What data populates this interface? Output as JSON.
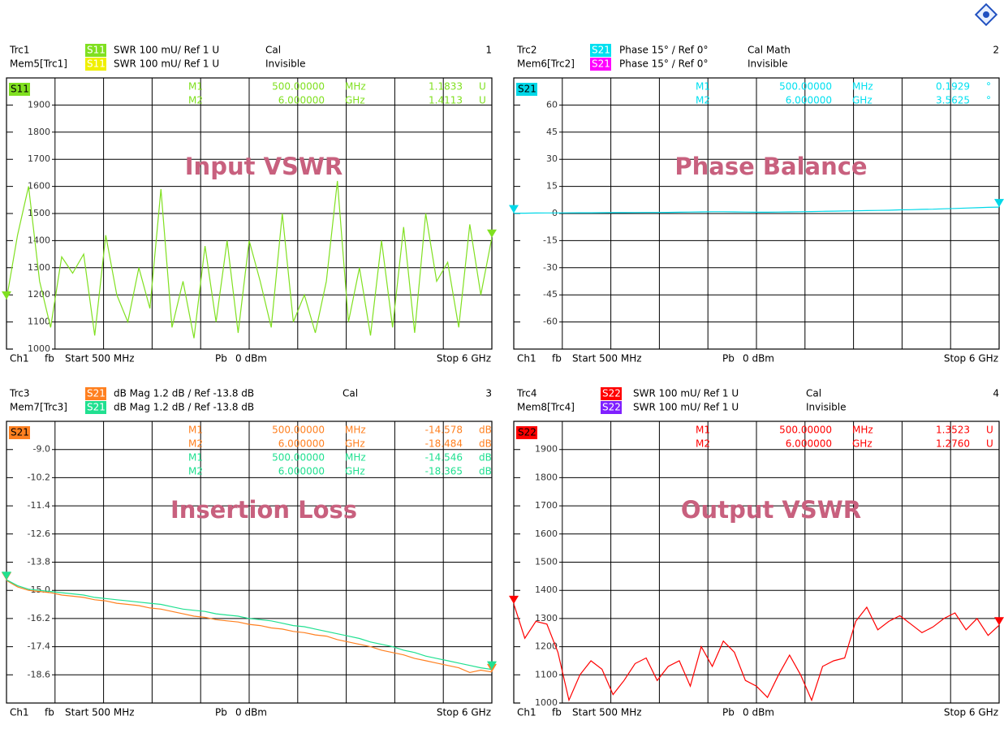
{
  "chart_data": [
    {
      "type": "line",
      "title": "Input VSWR",
      "page": "1",
      "legend": [
        {
          "label": "Trc1",
          "param": "S11",
          "color": "#80e020",
          "format": "SWR 100 mU/ Ref 1 U",
          "status": "Cal"
        },
        {
          "label": "Mem5[Trc1]",
          "param": "S11",
          "color": "#f0f000",
          "format": "SWR 100 mU/ Ref 1 U",
          "status": "Invisible"
        }
      ],
      "markers": [
        {
          "label": "M1",
          "freq": "500.00000",
          "unit": "MHz",
          "value": "1.1833",
          "vunit": "U",
          "color": "#80e020"
        },
        {
          "label": "M2",
          "freq": "6.000000",
          "unit": "GHz",
          "value": "1.4113",
          "vunit": "U",
          "color": "#80e020"
        }
      ],
      "footer": [
        "Ch1",
        "fb",
        "Start 500 MHz",
        "Pb",
        "0 dBm",
        "Stop 6 GHz"
      ],
      "x": [
        500,
        625,
        750,
        875,
        1000,
        1125,
        1250,
        1375,
        1500,
        1625,
        1750,
        1875,
        2000,
        2125,
        2250,
        2375,
        2500,
        2625,
        2750,
        2875,
        3000,
        3125,
        3250,
        3375,
        3500,
        3625,
        3750,
        3875,
        4000,
        4125,
        4250,
        4375,
        4500,
        4625,
        4750,
        4875,
        5000,
        5125,
        5250,
        5375,
        5500,
        5625,
        5750,
        5875,
        6000
      ],
      "xlim": [
        500,
        6000
      ],
      "ylim": [
        1000,
        2000
      ],
      "yticks": [
        1900,
        1800,
        1700,
        1600,
        1500,
        1400,
        1300,
        1200,
        1100,
        1000
      ],
      "series": [
        {
          "name": "S11",
          "color": "#80e020",
          "values": [
            1183,
            1420,
            1600,
            1250,
            1080,
            1340,
            1280,
            1350,
            1050,
            1420,
            1200,
            1100,
            1300,
            1150,
            1590,
            1080,
            1250,
            1040,
            1380,
            1100,
            1400,
            1060,
            1400,
            1250,
            1080,
            1500,
            1100,
            1200,
            1060,
            1250,
            1620,
            1100,
            1300,
            1050,
            1400,
            1080,
            1450,
            1060,
            1500,
            1250,
            1320,
            1080,
            1460,
            1200,
            1411
          ]
        }
      ]
    },
    {
      "type": "line",
      "title": "Phase Balance",
      "page": "2",
      "legend": [
        {
          "label": "Trc2",
          "param": "S21",
          "color": "#00e0f0",
          "format": "Phase 15° / Ref 0°",
          "status": "Cal Math"
        },
        {
          "label": "Mem6[Trc2]",
          "param": "S21",
          "color": "#ff00ff",
          "format": "Phase 15° / Ref 0°",
          "status": "Invisible"
        }
      ],
      "markers": [
        {
          "label": "M1",
          "freq": "500.00000",
          "unit": "MHz",
          "value": "0.1929",
          "vunit": "°",
          "color": "#00e0f0"
        },
        {
          "label": "M2",
          "freq": "6.000000",
          "unit": "GHz",
          "value": "3.5625",
          "vunit": "°",
          "color": "#00e0f0"
        }
      ],
      "footer": [
        "Ch1",
        "fb",
        "Start 500 MHz",
        "Pb",
        "0 dBm",
        "Stop 6 GHz"
      ],
      "x": [
        500,
        625,
        750,
        875,
        1000,
        1125,
        1250,
        1375,
        1500,
        1625,
        1750,
        1875,
        2000,
        2125,
        2250,
        2375,
        2500,
        2625,
        2750,
        2875,
        3000,
        3125,
        3250,
        3375,
        3500,
        3625,
        3750,
        3875,
        4000,
        4125,
        4250,
        4375,
        4500,
        4625,
        4750,
        4875,
        5000,
        5125,
        5250,
        5375,
        5500,
        5625,
        5750,
        5875,
        6000
      ],
      "xlim": [
        500,
        6000
      ],
      "ylim": [
        -75,
        75
      ],
      "yticks": [
        60,
        45,
        30,
        15,
        0,
        -15,
        -30,
        -45,
        -60
      ],
      "series": [
        {
          "name": "S21",
          "color": "#00d8e8",
          "values": [
            0.19,
            0.2,
            0.25,
            0.3,
            0.3,
            0.35,
            0.4,
            0.4,
            0.45,
            0.5,
            0.5,
            0.55,
            0.6,
            0.6,
            0.65,
            0.7,
            0.8,
            0.9,
            1.0,
            1.0,
            0.9,
            0.8,
            0.7,
            0.7,
            0.8,
            0.9,
            1.0,
            1.1,
            1.2,
            1.3,
            1.4,
            1.5,
            1.6,
            1.7,
            1.8,
            2.0,
            2.1,
            2.3,
            2.4,
            2.6,
            2.8,
            3.0,
            3.2,
            3.4,
            3.56
          ]
        }
      ]
    },
    {
      "type": "line",
      "title": "Insertion Loss",
      "page": "3",
      "legend": [
        {
          "label": "Trc3",
          "param": "S21",
          "color": "#ff8020",
          "format": "dB Mag 1.2 dB / Ref -13.8 dB",
          "status": "Cal"
        },
        {
          "label": "Mem7[Trc3]",
          "param": "S21",
          "color": "#20e090",
          "format": "dB Mag 1.2 dB / Ref -13.8 dB"
        }
      ],
      "markers": [
        {
          "label": "M1",
          "freq": "500.00000",
          "unit": "MHz",
          "value": "-14.578",
          "vunit": "dB",
          "color": "#ff8020"
        },
        {
          "label": "M2",
          "freq": "6.000000",
          "unit": "GHz",
          "value": "-18.484",
          "vunit": "dB",
          "color": "#ff8020"
        },
        {
          "label": "M1",
          "freq": "500.00000",
          "unit": "MHz",
          "value": "-14.546",
          "vunit": "dB",
          "color": "#20e090"
        },
        {
          "label": "M2",
          "freq": "6.000000",
          "unit": "GHz",
          "value": "-18.365",
          "vunit": "dB",
          "color": "#20e090"
        }
      ],
      "footer": [
        "Ch1",
        "fb",
        "Start 500 MHz",
        "Pb",
        "0 dBm",
        "Stop 6 GHz"
      ],
      "x": [
        500,
        625,
        750,
        875,
        1000,
        1125,
        1250,
        1375,
        1500,
        1625,
        1750,
        1875,
        2000,
        2125,
        2250,
        2375,
        2500,
        2625,
        2750,
        2875,
        3000,
        3125,
        3250,
        3375,
        3500,
        3625,
        3750,
        3875,
        4000,
        4125,
        4250,
        4375,
        4500,
        4625,
        4750,
        4875,
        5000,
        5125,
        5250,
        5375,
        5500,
        5625,
        5750,
        5875,
        6000
      ],
      "xlim": [
        500,
        6000
      ],
      "ylim": [
        -19.8,
        -7.8
      ],
      "yticks": [
        {
          "value": -9,
          "label": "-9.0"
        },
        -10.2,
        -11.4,
        -12.6,
        -13.8,
        {
          "value": -15,
          "label": "-15.0"
        },
        -16.2,
        -17.4,
        -18.6
      ],
      "series": [
        {
          "name": "S21",
          "color": "#ff8020",
          "values": [
            -14.58,
            -14.85,
            -15.0,
            -15.05,
            -15.1,
            -15.2,
            -15.25,
            -15.3,
            -15.4,
            -15.45,
            -15.55,
            -15.6,
            -15.65,
            -15.75,
            -15.8,
            -15.9,
            -16.0,
            -16.1,
            -16.15,
            -16.25,
            -16.3,
            -16.35,
            -16.45,
            -16.5,
            -16.6,
            -16.65,
            -16.75,
            -16.8,
            -16.9,
            -16.95,
            -17.1,
            -17.2,
            -17.3,
            -17.4,
            -17.55,
            -17.65,
            -17.75,
            -17.9,
            -18.0,
            -18.1,
            -18.2,
            -18.3,
            -18.5,
            -18.4,
            -18.48
          ]
        },
        {
          "color": "#20e090",
          "values": [
            -14.55,
            -14.8,
            -14.95,
            -15.0,
            -15.05,
            -15.1,
            -15.15,
            -15.2,
            -15.3,
            -15.35,
            -15.4,
            -15.45,
            -15.5,
            -15.55,
            -15.6,
            -15.7,
            -15.8,
            -15.85,
            -15.9,
            -16.0,
            -16.05,
            -16.1,
            -16.2,
            -16.25,
            -16.3,
            -16.4,
            -16.5,
            -16.55,
            -16.65,
            -16.75,
            -16.85,
            -16.95,
            -17.05,
            -17.2,
            -17.3,
            -17.4,
            -17.55,
            -17.65,
            -17.8,
            -17.9,
            -18.0,
            -18.1,
            -18.2,
            -18.3,
            -18.37
          ]
        }
      ]
    },
    {
      "type": "line",
      "title": "Output VSWR",
      "page": "4",
      "legend": [
        {
          "label": "Trc4",
          "param": "S22",
          "color": "#ff0000",
          "format": "SWR 100 mU/ Ref 1 U",
          "status": "Cal"
        },
        {
          "label": "Mem8[Trc4]",
          "param": "S22",
          "color": "#8020ff",
          "format": "SWR 100 mU/ Ref 1 U",
          "status": "Invisible"
        }
      ],
      "markers": [
        {
          "label": "M1",
          "freq": "500.00000",
          "unit": "MHz",
          "value": "1.3523",
          "vunit": "U",
          "color": "#ff0000"
        },
        {
          "label": "M2",
          "freq": "6.000000",
          "unit": "GHz",
          "value": "1.2760",
          "vunit": "U",
          "color": "#ff0000"
        }
      ],
      "footer": [
        "Ch1",
        "fb",
        "Start 500 MHz",
        "Pb",
        "0 dBm",
        "Stop 6 GHz"
      ],
      "x": [
        500,
        625,
        750,
        875,
        1000,
        1125,
        1250,
        1375,
        1500,
        1625,
        1750,
        1875,
        2000,
        2125,
        2250,
        2375,
        2500,
        2625,
        2750,
        2875,
        3000,
        3125,
        3250,
        3375,
        3500,
        3625,
        3750,
        3875,
        4000,
        4125,
        4250,
        4375,
        4500,
        4625,
        4750,
        4875,
        5000,
        5125,
        5250,
        5375,
        5500,
        5625,
        5750,
        5875,
        6000
      ],
      "xlim": [
        500,
        6000
      ],
      "ylim": [
        1000,
        2000
      ],
      "yticks": [
        1900,
        1800,
        1700,
        1600,
        1500,
        1400,
        1300,
        1200,
        1100,
        1000
      ],
      "series": [
        {
          "name": "S22",
          "color": "#ff0000",
          "values": [
            1352,
            1230,
            1290,
            1280,
            1180,
            1010,
            1100,
            1150,
            1120,
            1030,
            1080,
            1140,
            1160,
            1080,
            1130,
            1150,
            1060,
            1200,
            1130,
            1220,
            1180,
            1080,
            1060,
            1020,
            1100,
            1170,
            1100,
            1010,
            1130,
            1150,
            1160,
            1290,
            1340,
            1260,
            1290,
            1310,
            1280,
            1250,
            1270,
            1300,
            1320,
            1260,
            1300,
            1240,
            1276
          ]
        }
      ]
    }
  ]
}
